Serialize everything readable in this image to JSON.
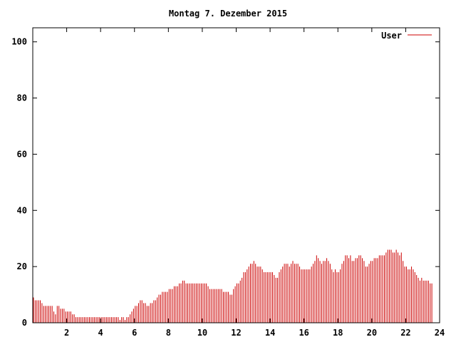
{
  "chart_data": {
    "type": "bar",
    "title": "Montag 7. Dezember 2015",
    "xlabel": "",
    "ylabel": "",
    "xlim": [
      0,
      24
    ],
    "ylim": [
      0,
      105
    ],
    "x_ticks": [
      2,
      4,
      6,
      8,
      10,
      12,
      14,
      16,
      18,
      20,
      22,
      24
    ],
    "y_ticks": [
      0,
      20,
      40,
      60,
      80,
      100
    ],
    "grid": false,
    "legend_position": "top-right",
    "colors": {
      "series": "#cc0000",
      "axis": "#000000"
    },
    "series": [
      {
        "name": "User",
        "sample_interval_hours": 0.1,
        "values": [
          9,
          8,
          8,
          8,
          8,
          7,
          6,
          6,
          6,
          6,
          6,
          6,
          4,
          3,
          6,
          6,
          5,
          5,
          5,
          4,
          4,
          4,
          4,
          3,
          3,
          2,
          2,
          2,
          2,
          2,
          2,
          2,
          2,
          2,
          2,
          2,
          2,
          2,
          2,
          2,
          2,
          2,
          2,
          2,
          2,
          2,
          2,
          2,
          2,
          2,
          2,
          1,
          2,
          2,
          1,
          2,
          2,
          3,
          4,
          5,
          6,
          6,
          7,
          8,
          8,
          7,
          7,
          6,
          6,
          7,
          7,
          8,
          8,
          9,
          10,
          10,
          11,
          11,
          11,
          11,
          12,
          12,
          12,
          13,
          13,
          13,
          14,
          14,
          15,
          15,
          14,
          14,
          14,
          14,
          14,
          14,
          14,
          14,
          14,
          14,
          14,
          14,
          14,
          13,
          12,
          12,
          12,
          12,
          12,
          12,
          12,
          12,
          11,
          11,
          11,
          11,
          10,
          10,
          12,
          13,
          14,
          14,
          15,
          16,
          18,
          18,
          19,
          20,
          21,
          21,
          22,
          21,
          20,
          20,
          20,
          19,
          18,
          18,
          18,
          18,
          18,
          18,
          17,
          16,
          16,
          18,
          19,
          20,
          21,
          21,
          21,
          20,
          21,
          22,
          21,
          21,
          21,
          20,
          19,
          19,
          19,
          19,
          19,
          19,
          20,
          21,
          22,
          24,
          23,
          22,
          21,
          22,
          22,
          23,
          22,
          21,
          19,
          18,
          19,
          18,
          18,
          19,
          21,
          22,
          24,
          24,
          23,
          24,
          22,
          22,
          23,
          23,
          24,
          24,
          23,
          22,
          20,
          20,
          21,
          22,
          22,
          23,
          23,
          23,
          24,
          24,
          24,
          24,
          25,
          26,
          26,
          26,
          25,
          25,
          26,
          25,
          24,
          25,
          22,
          20,
          20,
          19,
          19,
          20,
          19,
          18,
          17,
          16,
          15,
          16,
          15,
          15,
          15,
          15,
          14,
          14
        ]
      }
    ]
  }
}
